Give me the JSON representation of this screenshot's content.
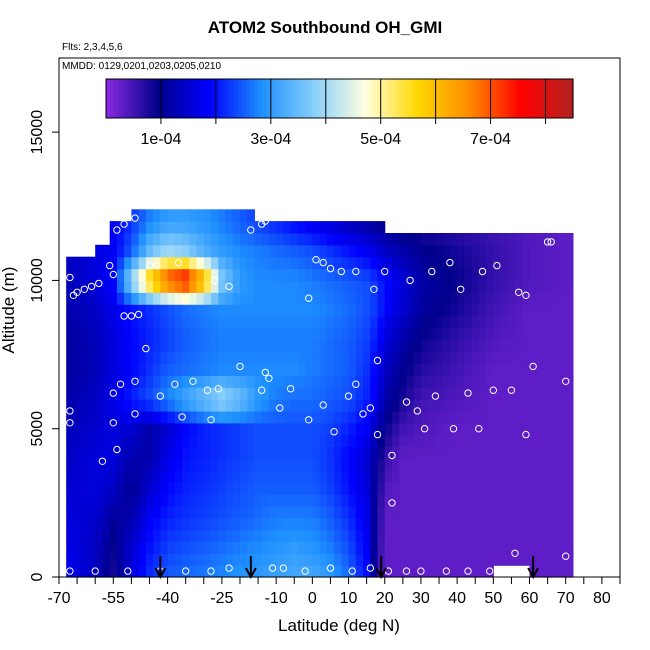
{
  "title": "ATOM2 Southbound OH_GMI",
  "notes": {
    "flights": "Flts: 2,3,4,5,6",
    "dates": "MMDD: 0129,0201,0203,0205,0210"
  },
  "chart_data": {
    "type": "heatmap",
    "title": "ATOM2 Southbound OH_GMI",
    "xlabel": "Latitude (deg N)",
    "ylabel": "Altitude (m)",
    "xlim": [
      -70,
      85
    ],
    "ylim": [
      0,
      17500
    ],
    "x_ticks": [
      "-70",
      "-55",
      "-40",
      "-25",
      "-10",
      "0",
      "10",
      "20",
      "30",
      "40",
      "50",
      "60",
      "70",
      "80"
    ],
    "x_tick_values": [
      -70,
      -55,
      -40,
      -25,
      -10,
      0,
      10,
      20,
      30,
      40,
      50,
      60,
      70,
      80
    ],
    "x_minor_ticks": [
      -65,
      -60,
      -50,
      -45,
      -35,
      -30,
      -20,
      -15,
      -5,
      5,
      15,
      25,
      35,
      45,
      55,
      65,
      75,
      85
    ],
    "y_ticks": [
      "0",
      "5000",
      "10000",
      "15000"
    ],
    "y_tick_values": [
      0,
      5000,
      10000,
      15000
    ],
    "colorbar": {
      "labels": [
        "1e-04",
        "3e-04",
        "5e-04",
        "7e-04"
      ],
      "label_values": [
        0.0001,
        0.0003,
        0.0005,
        0.0007
      ],
      "range": [
        0.0,
        0.00085
      ],
      "colors": [
        "#8a2be2",
        "#00008b",
        "#0000ff",
        "#1e90ff",
        "#87cefa",
        "#ffffe0",
        "#ffd700",
        "#ff8c00",
        "#ff0000",
        "#b22222"
      ]
    },
    "field": {
      "lat": [
        -68,
        -60,
        -55,
        -50,
        -45,
        -40,
        -35,
        -30,
        -25,
        -20,
        -15,
        -10,
        -5,
        0,
        5,
        10,
        15,
        18,
        20,
        25,
        30,
        40,
        50,
        60,
        72
      ],
      "alt": [
        0,
        1000,
        2000,
        3000,
        4000,
        5000,
        6000,
        7000,
        8000,
        9000,
        10000,
        11000,
        12000
      ],
      "values": [
        [
          0.00018,
          0.00014,
          8e-05,
          0.00016,
          0.00022,
          0.00025,
          0.00026,
          0.00027,
          0.00028,
          0.00029,
          0.0003,
          0.00031,
          0.00032,
          0.00032,
          0.0003,
          0.00026,
          0.0002,
          6e-05,
          3e-05,
          3e-05,
          3e-05,
          3e-05,
          3e-05,
          3e-05,
          3e-05
        ],
        [
          0.00017,
          0.00014,
          9e-05,
          0.00015,
          0.0002,
          0.00023,
          0.00024,
          0.00025,
          0.00026,
          0.00027,
          0.00028,
          0.00029,
          0.0003,
          0.00029,
          0.00027,
          0.00024,
          0.00018,
          7e-05,
          3e-05,
          3e-05,
          3e-05,
          3e-05,
          3e-05,
          3e-05,
          3e-05
        ],
        [
          0.00016,
          0.00015,
          0.00011,
          0.00012,
          0.00018,
          0.00021,
          0.00022,
          0.00023,
          0.00024,
          0.00025,
          0.00026,
          0.00027,
          0.00027,
          0.00027,
          0.00025,
          0.00022,
          0.00017,
          8e-05,
          3e-05,
          3e-05,
          3e-05,
          3e-05,
          3e-05,
          3e-05,
          3e-05
        ],
        [
          0.00015,
          0.00016,
          0.00014,
          0.0001,
          0.00015,
          0.00019,
          0.00021,
          0.00022,
          0.00023,
          0.00024,
          0.00025,
          0.00025,
          0.00025,
          0.00025,
          0.00023,
          0.0002,
          0.00016,
          9e-05,
          4e-05,
          3e-05,
          3e-05,
          3e-05,
          3e-05,
          3e-05,
          3e-05
        ],
        [
          0.00014,
          0.00016,
          0.00016,
          0.00012,
          0.00012,
          0.00017,
          0.0002,
          0.00021,
          0.00022,
          0.00023,
          0.00024,
          0.00024,
          0.00024,
          0.00024,
          0.00022,
          0.00019,
          0.00015,
          0.0001,
          6e-05,
          3e-05,
          3e-05,
          3e-05,
          3e-05,
          3e-05,
          3e-05
        ],
        [
          0.00013,
          0.00015,
          0.00016,
          0.00015,
          0.00012,
          0.00015,
          0.00019,
          0.00021,
          0.00022,
          0.00023,
          0.00024,
          0.00024,
          0.00024,
          0.00024,
          0.00023,
          0.00021,
          0.00018,
          0.00013,
          9e-05,
          5e-05,
          4e-05,
          3e-05,
          3e-05,
          3e-05,
          3e-05
        ],
        [
          0.00012,
          0.00014,
          0.00017,
          0.00021,
          0.00024,
          0.00028,
          0.00032,
          0.00036,
          0.0004,
          0.00036,
          0.0003,
          0.00027,
          0.00026,
          0.00026,
          0.00025,
          0.00024,
          0.00021,
          0.00017,
          0.00012,
          8e-05,
          5e-05,
          4e-05,
          3e-05,
          3e-05,
          3e-05
        ],
        [
          0.00011,
          0.00013,
          0.00016,
          0.00019,
          0.00022,
          0.00025,
          0.00026,
          0.00027,
          0.00028,
          0.00028,
          0.00028,
          0.00028,
          0.00028,
          0.00027,
          0.00026,
          0.00025,
          0.00022,
          0.00018,
          0.00014,
          0.0001,
          7e-05,
          5e-05,
          3e-05,
          3e-05,
          3e-05
        ],
        [
          0.00011,
          0.00013,
          0.00016,
          0.00019,
          0.00021,
          0.00023,
          0.00025,
          0.00026,
          0.00027,
          0.00027,
          0.00027,
          0.00027,
          0.00027,
          0.00027,
          0.00026,
          0.00025,
          0.00023,
          0.0002,
          0.00016,
          0.00012,
          9e-05,
          6e-05,
          4e-05,
          3e-05,
          3e-05
        ],
        [
          0.00012,
          0.00014,
          0.00017,
          0.0002,
          0.00022,
          0.00024,
          0.00026,
          0.00027,
          0.00028,
          0.00028,
          0.00028,
          0.00028,
          0.00028,
          0.00028,
          0.00027,
          0.00026,
          0.00024,
          0.00022,
          0.00019,
          0.00015,
          0.00011,
          8e-05,
          5e-05,
          3e-05,
          3e-05
        ],
        [
          0.00013,
          0.00016,
          0.00019,
          0.0004,
          0.0006,
          0.00075,
          0.0008,
          0.00065,
          0.00038,
          0.0003,
          0.00028,
          0.00028,
          0.00028,
          0.00027,
          0.00026,
          0.00025,
          0.00024,
          0.00022,
          0.0002,
          0.00016,
          0.00012,
          9e-05,
          6e-05,
          4e-05,
          3e-05
        ],
        [
          0.00014,
          0.00016,
          0.00018,
          0.00025,
          0.00035,
          0.0004,
          0.00038,
          0.00033,
          0.0003,
          0.00028,
          0.00027,
          0.00026,
          0.00025,
          0.00024,
          0.00022,
          0.0002,
          0.00018,
          0.00016,
          0.00014,
          0.00012,
          0.0001,
          8e-05,
          6e-05,
          4e-05,
          3e-05
        ],
        [
          0.00014,
          0.00016,
          0.00018,
          0.00022,
          0.00027,
          0.0003,
          0.0003,
          0.00029,
          0.00027,
          0.00025,
          0.00023,
          0.00021,
          0.00019,
          0.00017,
          0.00015,
          0.00013,
          0.00011,
          0.0001,
          9e-05,
          8e-05,
          7e-05,
          6e-05,
          5e-05,
          4e-05,
          3e-05
        ]
      ]
    },
    "observations": [
      [
        -67,
        10100
      ],
      [
        -66,
        9500
      ],
      [
        -65,
        9600
      ],
      [
        -63,
        9700
      ],
      [
        -61,
        9800
      ],
      [
        -59,
        9900
      ],
      [
        -56,
        10500
      ],
      [
        -55,
        10200
      ],
      [
        -54,
        11700
      ],
      [
        -52,
        11900
      ],
      [
        -49,
        12100
      ],
      [
        -52,
        8800
      ],
      [
        -50,
        8800
      ],
      [
        -48,
        8850
      ],
      [
        -45,
        10500
      ],
      [
        -43,
        10500
      ],
      [
        -37,
        10600
      ],
      [
        -27,
        10000
      ],
      [
        -23,
        9800
      ],
      [
        -17,
        11700
      ],
      [
        -14,
        11900
      ],
      [
        -13,
        12000
      ],
      [
        -46,
        7700
      ],
      [
        -49,
        6600
      ],
      [
        -53,
        6500
      ],
      [
        -55,
        6200
      ],
      [
        -42,
        6100
      ],
      [
        -38,
        6500
      ],
      [
        -33,
        6600
      ],
      [
        -29,
        6300
      ],
      [
        -26,
        6350
      ],
      [
        -20,
        7100
      ],
      [
        -13,
        6900
      ],
      [
        -12,
        6700
      ],
      [
        -14,
        6300
      ],
      [
        -9,
        5700
      ],
      [
        -6,
        6350
      ],
      [
        3,
        5800
      ],
      [
        -1,
        5300
      ],
      [
        -36,
        5400
      ],
      [
        -28,
        5300
      ],
      [
        -67,
        5600
      ],
      [
        -67,
        5200
      ],
      [
        -55,
        5200
      ],
      [
        -49,
        5500
      ],
      [
        -54,
        4300
      ],
      [
        -58,
        3900
      ],
      [
        -1,
        9400
      ],
      [
        5,
        10400
      ],
      [
        8,
        10300
      ],
      [
        12,
        10300
      ],
      [
        17,
        9700
      ],
      [
        20,
        10300
      ],
      [
        27,
        10000
      ],
      [
        33,
        10300
      ],
      [
        38,
        10600
      ],
      [
        41,
        9700
      ],
      [
        47,
        10300
      ],
      [
        51,
        10500
      ],
      [
        57,
        9600
      ],
      [
        59,
        9500
      ],
      [
        65,
        11300
      ],
      [
        66,
        11300
      ],
      [
        3,
        10600
      ],
      [
        1,
        10700
      ],
      [
        18,
        7300
      ],
      [
        10,
        6100
      ],
      [
        12,
        6500
      ],
      [
        14,
        5500
      ],
      [
        16,
        5700
      ],
      [
        18,
        4800
      ],
      [
        22,
        4100
      ],
      [
        26,
        5900
      ],
      [
        29,
        5600
      ],
      [
        31,
        5000
      ],
      [
        34,
        6100
      ],
      [
        39,
        5000
      ],
      [
        43,
        6200
      ],
      [
        46,
        5000
      ],
      [
        50,
        6300
      ],
      [
        55,
        6300
      ],
      [
        59,
        4800
      ],
      [
        61,
        7100
      ],
      [
        70,
        6600
      ],
      [
        6,
        4900
      ],
      [
        22,
        2500
      ],
      [
        -60,
        200
      ],
      [
        -51,
        200
      ],
      [
        -42,
        200
      ],
      [
        -35,
        200
      ],
      [
        -28,
        200
      ],
      [
        -23,
        300
      ],
      [
        -11,
        300
      ],
      [
        -8,
        300
      ],
      [
        -2,
        200
      ],
      [
        5,
        300
      ],
      [
        11,
        200
      ],
      [
        16,
        300
      ],
      [
        21,
        200
      ],
      [
        26,
        200
      ],
      [
        30,
        200
      ],
      [
        37,
        200
      ],
      [
        43,
        200
      ],
      [
        49,
        200
      ],
      [
        54,
        200
      ],
      [
        56,
        800
      ],
      [
        70,
        700
      ],
      [
        -67,
        200
      ]
    ],
    "arrows_lat": [
      -42,
      -17,
      19,
      61
    ]
  }
}
